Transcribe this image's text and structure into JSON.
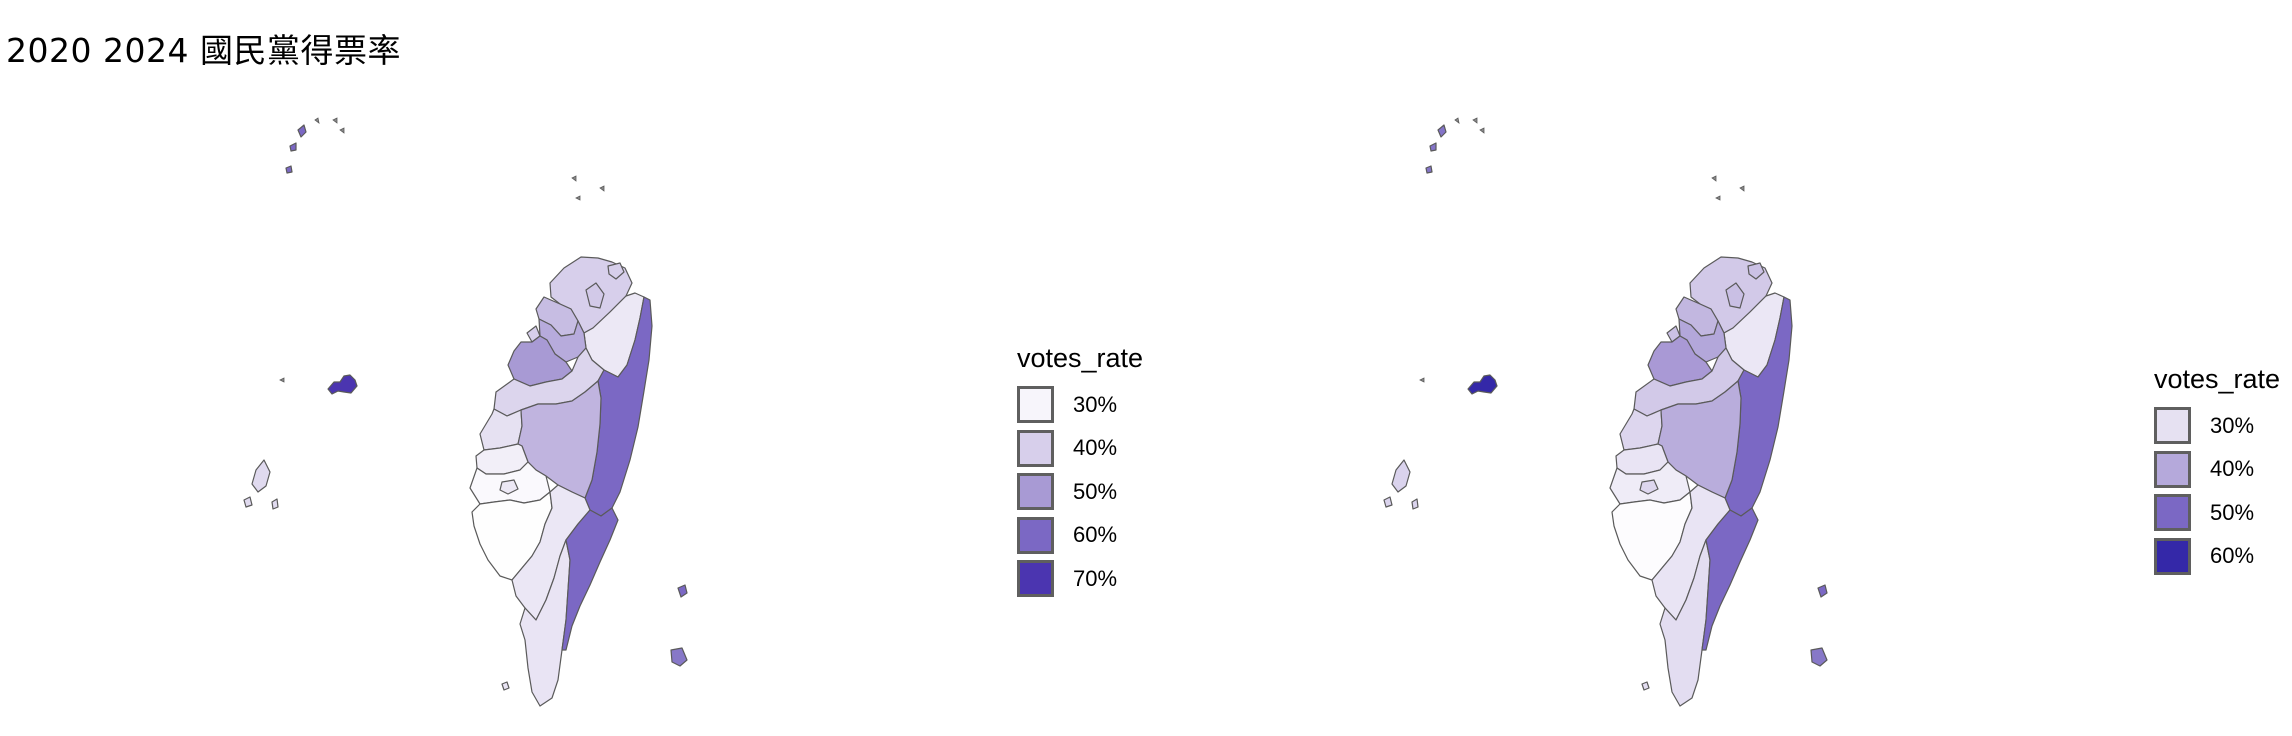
{
  "title": "2020 2024 國民黨得票率",
  "maps": [
    {
      "id": "2020",
      "legend_title": "votes_rate",
      "legend": [
        {
          "label": "30%",
          "color": "#f7f5fb"
        },
        {
          "label": "40%",
          "color": "#d7cfeb"
        },
        {
          "label": "50%",
          "color": "#a89ad4"
        },
        {
          "label": "60%",
          "color": "#7b68c4"
        },
        {
          "label": "70%",
          "color": "#4b35b0"
        }
      ],
      "regions": {
        "keelung": "#d7cfeb",
        "taipei_city": "#d2c9e8",
        "new_taipei": "#d7cfeb",
        "taoyuan": "#c7bde3",
        "yilan": "#ece8f5",
        "hsinchu_county": "#b7abdc",
        "hsinchu_city": "#d7cfeb",
        "miaoli": "#a89ad4",
        "taichung": "#dcd5ed",
        "hualien": "#7b68c4",
        "changhua": "#e6e1f2",
        "nantou": "#c0b4df",
        "yunlin": "#f2eff8",
        "chiayi_county": "#faf9fd",
        "chiayi_city": "#ece8f5",
        "tainan": "#fefefe",
        "kaohsiung": "#ebe7f5",
        "pingtung": "#e9e4f4",
        "taitung": "#7b68c4",
        "kinmen": "#4b35b0",
        "lienchiang": "#7b68c4",
        "penghu": "#e0daef",
        "green_island": "#7b68c4",
        "orchid_island": "#8778c8",
        "liuqiu": "#e9e4f4"
      }
    },
    {
      "id": "2024",
      "legend_title": "votes_rate",
      "legend": [
        {
          "label": "30%",
          "color": "#e6e1f2"
        },
        {
          "label": "40%",
          "color": "#b5a9db"
        },
        {
          "label": "50%",
          "color": "#7b68c4"
        },
        {
          "label": "60%",
          "color": "#3428a8"
        }
      ],
      "regions": {
        "keelung": "#cbc1e5",
        "taipei_city": "#c9bfe4",
        "new_taipei": "#d2c9e8",
        "taoyuan": "#c2b7e0",
        "yilan": "#ebe7f5",
        "hsinchu_county": "#b3a7da",
        "hsinchu_city": "#cbc1e5",
        "miaoli": "#a999d5",
        "taichung": "#d2c9e8",
        "hualien": "#7b68c4",
        "changhua": "#ddd6ee",
        "nantou": "#b9addc",
        "yunlin": "#e9e4f4",
        "chiayi_county": "#efecf7",
        "chiayi_city": "#ddd6ee",
        "tainan": "#fdfcfe",
        "kaohsiung": "#e9e4f4",
        "pingtung": "#e3ddf1",
        "taitung": "#7b68c4",
        "kinmen": "#3428a8",
        "lienchiang": "#8474c8",
        "penghu": "#dad3ed",
        "green_island": "#7b68c4",
        "orchid_island": "#8778c8",
        "liuqiu": "#e3ddf1"
      }
    }
  ]
}
